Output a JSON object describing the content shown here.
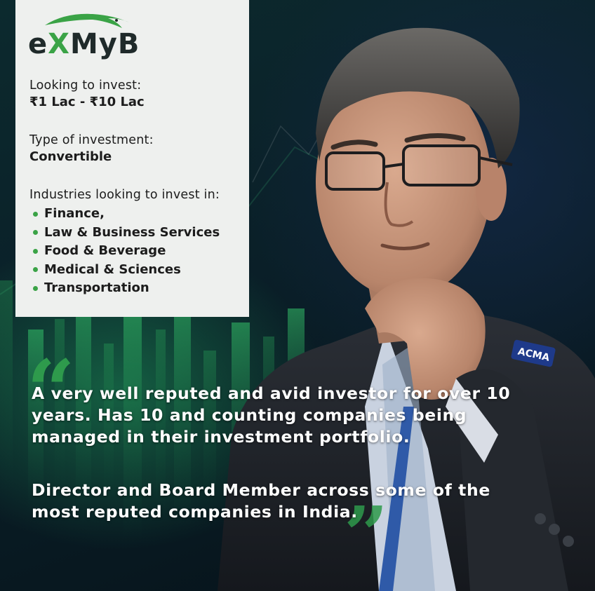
{
  "brand": {
    "logo_text_1": "e",
    "logo_text_x": "X",
    "logo_text_2": "MyB",
    "accent_color": "#3aa346",
    "dark_color": "#1f2a2a"
  },
  "investment": {
    "amount_label": "Looking to invest:",
    "amount_value": "₹1 Lac - ₹10 Lac",
    "type_label": "Type of investment:",
    "type_value": "Convertible",
    "industries_label": "Industries looking to invest in:",
    "industries": [
      "Finance,",
      "Law & Business Services",
      "Food & Beverage",
      "Medical & Sciences",
      "Transportation"
    ]
  },
  "quote": {
    "paragraph_1": "A very well reputed and avid investor for over 10 years. Has 10 and counting companies being managed in their investment portfolio.",
    "paragraph_2": "Director and Board Member across some of the most reputed companies in India."
  },
  "photo": {
    "badge_text": "ACMA"
  }
}
